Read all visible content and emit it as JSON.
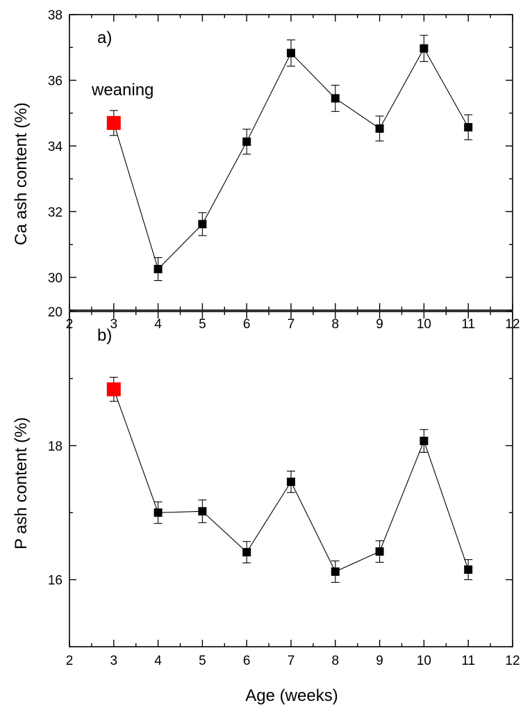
{
  "chart_data": [
    {
      "type": "line",
      "panel_label": "a)",
      "ylabel": "Ca ash content (%)",
      "xlabel": "",
      "xlim": [
        2,
        12
      ],
      "ylim": [
        29,
        38
      ],
      "x_ticks": [
        2,
        3,
        4,
        5,
        6,
        7,
        8,
        9,
        10,
        11,
        12
      ],
      "y_ticks": [
        30,
        32,
        34,
        36,
        38
      ],
      "annotation": "weaning",
      "highlight_color": "#ff0000",
      "marker_color": "#000000",
      "x": [
        3,
        4,
        5,
        6,
        7,
        8,
        9,
        10,
        11
      ],
      "y": [
        34.7,
        30.25,
        31.62,
        34.13,
        36.83,
        35.45,
        34.53,
        36.97,
        34.57
      ],
      "error": [
        0.38,
        0.35,
        0.35,
        0.38,
        0.4,
        0.4,
        0.38,
        0.4,
        0.38
      ],
      "highlight_index": 0
    },
    {
      "type": "line",
      "panel_label": "b)",
      "ylabel": "P ash content (%)",
      "xlabel": "Age (weeks)",
      "xlim": [
        2,
        12
      ],
      "ylim": [
        15,
        20
      ],
      "x_ticks": [
        2,
        3,
        4,
        5,
        6,
        7,
        8,
        9,
        10,
        11,
        12
      ],
      "y_ticks": [
        16,
        18,
        20
      ],
      "highlight_color": "#ff0000",
      "marker_color": "#000000",
      "x": [
        3,
        4,
        5,
        6,
        7,
        8,
        9,
        10,
        11
      ],
      "y": [
        18.84,
        17.0,
        17.02,
        16.41,
        17.46,
        16.12,
        16.42,
        18.07,
        16.15
      ],
      "error": [
        0.18,
        0.16,
        0.17,
        0.16,
        0.16,
        0.16,
        0.16,
        0.17,
        0.15
      ],
      "highlight_index": 0
    }
  ]
}
